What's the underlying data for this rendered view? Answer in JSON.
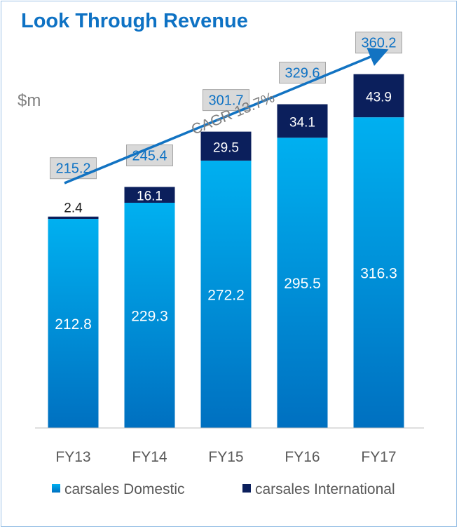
{
  "title": "Look Through Revenue",
  "unit_label": "$m",
  "cagr_label": "CAGR 13.7%",
  "colors": {
    "title": "#0e72c4",
    "domestic_top": "#00b0f0",
    "domestic_bottom": "#0070c0",
    "international": "#0b1f5c",
    "total_box_fill": "#d9d9d9",
    "total_box_text": "#0e72c4",
    "arrow": "#1273c2"
  },
  "chart_data": {
    "type": "bar",
    "stacked": true,
    "categories": [
      "FY13",
      "FY14",
      "FY15",
      "FY16",
      "FY17"
    ],
    "series": [
      {
        "name": "carsales Domestic",
        "values": [
          212.8,
          229.3,
          272.2,
          295.5,
          316.3
        ]
      },
      {
        "name": "carsales International",
        "values": [
          2.4,
          16.1,
          29.5,
          34.1,
          43.9
        ]
      }
    ],
    "totals": [
      215.2,
      245.4,
      301.7,
      329.6,
      360.2
    ],
    "ylabel": "$m",
    "legend_position": "bottom",
    "annotation": "CAGR 13.7%"
  }
}
